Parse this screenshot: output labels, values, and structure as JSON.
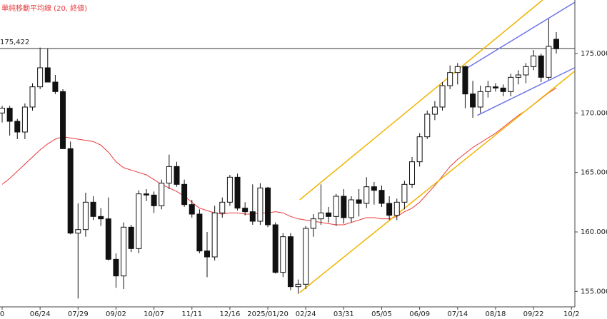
{
  "chart_data": {
    "type": "candlestick",
    "legend": "単純移動平均線 (20, 終値)",
    "categories": [
      "0",
      null,
      null,
      null,
      null,
      "06/24",
      null,
      null,
      null,
      null,
      "07/29",
      null,
      null,
      null,
      null,
      "09/02",
      null,
      null,
      null,
      null,
      "10/07",
      null,
      null,
      null,
      null,
      "11/11",
      null,
      null,
      null,
      null,
      "12/16",
      null,
      null,
      null,
      null,
      "2025/01/20",
      null,
      null,
      null,
      null,
      "02/24",
      null,
      null,
      null,
      null,
      "03/31",
      null,
      null,
      null,
      null,
      "05/05",
      null,
      null,
      null,
      null,
      "06/09",
      null,
      null,
      null,
      null,
      "07/14",
      null,
      null,
      null,
      null,
      "08/18",
      null,
      null,
      null,
      null,
      "09/22",
      null,
      null,
      null,
      null,
      "10/2"
    ],
    "open": [
      170.0,
      170.4,
      169.3,
      168.4,
      170.5,
      172.2,
      173.8,
      172.6,
      171.8,
      167.0,
      159.9,
      160.2,
      162.5,
      161.3,
      161.1,
      157.7,
      156.3,
      160.4,
      158.6,
      163.2,
      163.1,
      162.2,
      164.1,
      165.5,
      164.0,
      162.3,
      161.5,
      158.4,
      157.9,
      161.6,
      162.5,
      164.6,
      162.0,
      161.7,
      160.9,
      163.7,
      160.6,
      156.6,
      159.6,
      155.4,
      155.6,
      160.3,
      161.1,
      161.6,
      161.3,
      163.0,
      161.2,
      162.7,
      162.4,
      163.8,
      163.5,
      162.4,
      161.4,
      162.5,
      164.0,
      165.9,
      168.0,
      169.9,
      170.5,
      172.3,
      173.4,
      173.9,
      171.6,
      170.5,
      171.8,
      172.2,
      172.1,
      171.8,
      173.0,
      173.2,
      173.9,
      174.8,
      173.0,
      176.2,
      null,
      null
    ],
    "high": [
      170.6,
      170.6,
      169.5,
      170.8,
      172.5,
      175.5,
      175.4,
      173.2,
      172.0,
      167.6,
      162.4,
      163.3,
      163.0,
      162.0,
      162.9,
      158.2,
      160.8,
      160.6,
      163.5,
      163.6,
      163.4,
      164.4,
      166.5,
      165.9,
      164.4,
      162.7,
      161.9,
      160.0,
      162.2,
      162.9,
      164.8,
      164.9,
      162.5,
      164.0,
      164.1,
      163.8,
      160.8,
      159.9,
      159.9,
      156.0,
      160.5,
      161.5,
      164.0,
      162.1,
      163.2,
      163.6,
      163.0,
      163.6,
      164.6,
      164.2,
      163.9,
      163.0,
      162.8,
      164.3,
      166.3,
      168.3,
      170.2,
      171.0,
      172.6,
      174.0,
      174.2,
      174.0,
      172.7,
      172.3,
      172.7,
      172.5,
      172.4,
      173.3,
      173.6,
      174.2,
      175.3,
      175.0,
      177.9,
      176.8,
      null,
      null
    ],
    "low": [
      169.2,
      168.1,
      167.8,
      167.8,
      170.2,
      172.0,
      172.8,
      171.6,
      167.0,
      159.8,
      154.4,
      159.6,
      161.0,
      160.5,
      157.6,
      155.3,
      155.2,
      158.3,
      158.2,
      162.6,
      161.6,
      161.9,
      163.6,
      163.8,
      162.1,
      161.2,
      158.2,
      156.2,
      157.6,
      161.2,
      162.2,
      161.8,
      161.4,
      160.6,
      160.6,
      160.4,
      156.5,
      156.2,
      155.1,
      154.8,
      155.2,
      159.6,
      160.6,
      160.8,
      160.5,
      160.7,
      160.8,
      161.3,
      162.0,
      162.3,
      162.1,
      161.0,
      161.0,
      161.9,
      163.7,
      165.5,
      167.8,
      169.4,
      170.2,
      172.0,
      172.4,
      170.4,
      169.6,
      170.0,
      171.3,
      171.8,
      171.4,
      171.4,
      172.4,
      172.5,
      173.6,
      172.6,
      172.8,
      175.0,
      null,
      null
    ],
    "close": [
      170.4,
      169.3,
      168.4,
      170.5,
      172.2,
      173.8,
      172.6,
      171.8,
      167.0,
      159.9,
      160.2,
      162.5,
      161.3,
      161.1,
      157.7,
      156.3,
      160.4,
      158.6,
      163.2,
      163.1,
      162.2,
      164.1,
      165.5,
      164.0,
      162.3,
      161.5,
      158.4,
      157.9,
      161.6,
      162.5,
      164.6,
      162.0,
      161.7,
      160.9,
      163.7,
      160.6,
      156.6,
      159.6,
      155.4,
      155.6,
      160.3,
      161.1,
      161.6,
      161.3,
      163.0,
      161.2,
      162.7,
      162.4,
      163.8,
      163.5,
      162.4,
      161.4,
      162.5,
      164.0,
      165.9,
      168.0,
      169.9,
      170.5,
      172.3,
      173.4,
      173.9,
      171.6,
      170.5,
      171.8,
      172.2,
      172.1,
      171.8,
      173.0,
      173.2,
      173.9,
      174.8,
      173.0,
      175.6,
      175.4,
      null,
      null
    ],
    "ma": {
      "color": "#e8393c",
      "values": [
        164.0,
        164.5,
        165.1,
        165.7,
        166.3,
        166.9,
        167.4,
        167.8,
        168.0,
        167.9,
        167.8,
        167.7,
        167.6,
        167.3,
        166.7,
        165.9,
        165.4,
        165.2,
        165.0,
        164.8,
        164.4,
        164.0,
        163.7,
        163.4,
        163.0,
        162.5,
        162.0,
        161.8,
        161.6,
        161.5,
        161.6,
        161.6,
        161.5,
        161.5,
        161.6,
        161.6,
        161.7,
        161.6,
        161.3,
        161.1,
        161.0,
        160.9,
        160.8,
        160.7,
        160.6,
        160.6,
        160.8,
        161.0,
        161.2,
        161.2,
        161.1,
        161.1,
        161.3,
        161.7,
        162.0,
        162.5,
        163.2,
        163.9,
        164.7,
        165.5,
        166.1,
        166.6,
        167.1,
        167.5,
        167.9,
        168.3,
        168.8,
        169.3,
        169.8,
        170.2,
        170.7,
        171.2,
        171.7,
        172.1,
        null,
        null
      ]
    },
    "hline": {
      "value": 175.422,
      "label": "175,422"
    },
    "trendlines": [
      {
        "color": "#f0b400",
        "x": [
          39.2,
          71.2
        ],
        "y": [
          162.7,
          179.5
        ]
      },
      {
        "color": "#f0b400",
        "x": [
          39.2,
          75.4
        ],
        "y": [
          154.9,
          173.5
        ]
      },
      {
        "color": "#6f73e8",
        "x": [
          61.3,
          75.4
        ],
        "y": [
          173.8,
          179.3
        ]
      },
      {
        "color": "#6f73e8",
        "x": [
          62.6,
          75.4
        ],
        "y": [
          169.8,
          173.8
        ]
      }
    ],
    "ylim": [
      153.7,
      179.5
    ],
    "yticks": [
      {
        "value": 155,
        "label": "155.000"
      },
      {
        "value": 160,
        "label": "160.000"
      },
      {
        "value": 165,
        "label": "165.000"
      },
      {
        "value": 170,
        "label": "170.000"
      },
      {
        "value": 175,
        "label": "175.000"
      }
    ]
  }
}
